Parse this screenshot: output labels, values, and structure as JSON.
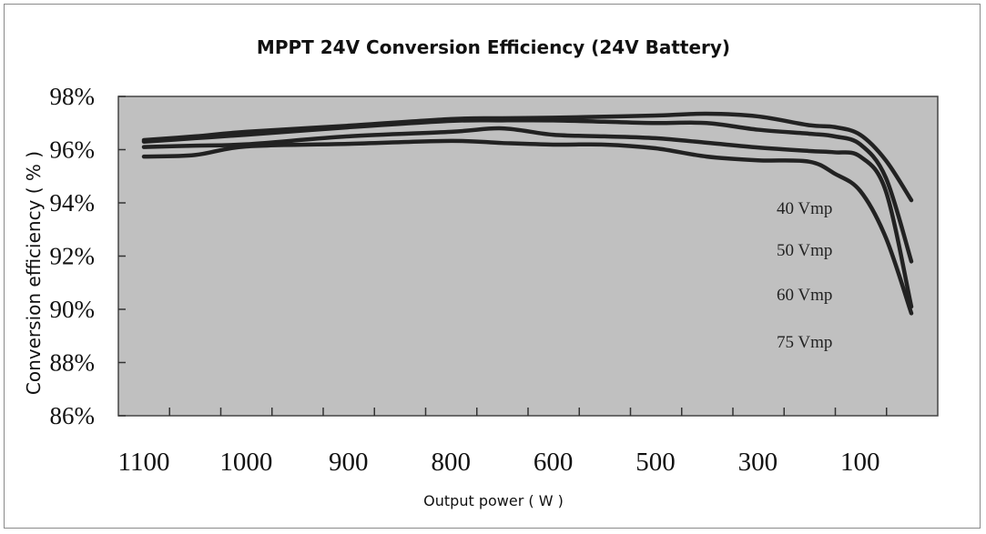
{
  "chart_data": {
    "type": "line",
    "title": "MPPT 24V Conversion Efficiency (24V Battery)",
    "xlabel": "Output power ( W )",
    "ylabel": "Conversion efficiency ( % )",
    "x_tick_labels": [
      "1100",
      "1000",
      "900",
      "800",
      "600",
      "500",
      "300",
      "100"
    ],
    "y_tick_labels": [
      "98%",
      "96%",
      "94%",
      "92%",
      "90%",
      "88%",
      "86%"
    ],
    "y_ticks": [
      98,
      96,
      94,
      92,
      90,
      88,
      86
    ],
    "ylim": [
      86,
      98
    ],
    "x_direction": "descending",
    "grid": false,
    "plot_background": "#c0c0c0",
    "line_color": "#222222",
    "x": [
      1100,
      1050,
      1000,
      900,
      800,
      700,
      600,
      550,
      500,
      400,
      300,
      200,
      150,
      100,
      50,
      0
    ],
    "series": [
      {
        "name": "40 Vmp",
        "values": [
          96.36,
          96.5,
          96.67,
          96.9,
          97.15,
          97.18,
          97.2,
          97.24,
          97.28,
          97.35,
          97.25,
          96.92,
          96.85,
          96.56,
          95.6,
          94.1
        ]
      },
      {
        "name": "50 Vmp",
        "values": [
          96.3,
          96.43,
          96.56,
          96.84,
          97.08,
          97.1,
          97.1,
          97.05,
          97.0,
          97.0,
          96.75,
          96.6,
          96.5,
          96.2,
          94.95,
          91.8
        ]
      },
      {
        "name": "60 Vmp",
        "values": [
          96.1,
          96.15,
          96.2,
          96.5,
          96.67,
          96.8,
          96.56,
          96.5,
          96.43,
          96.26,
          96.08,
          95.95,
          95.9,
          95.74,
          94.45,
          90.1
        ]
      },
      {
        "name": "75 Vmp",
        "values": [
          95.74,
          95.8,
          96.12,
          96.22,
          96.33,
          96.25,
          96.19,
          96.19,
          96.05,
          95.74,
          95.6,
          95.55,
          95.1,
          94.45,
          92.7,
          89.85
        ]
      }
    ]
  }
}
